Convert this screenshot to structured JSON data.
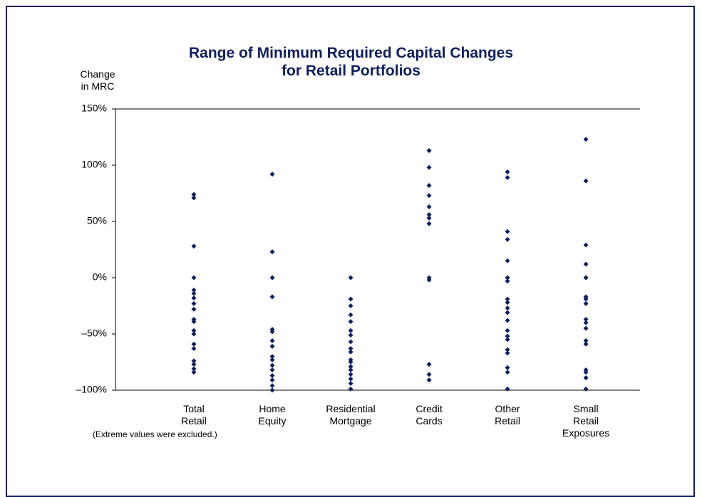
{
  "chart_data": {
    "type": "strip",
    "title": "Range of Minimum Required Capital Changes\nfor Retail Portfolios",
    "y_label": "Change\nin MRC",
    "note": "(Extreme values were excluded.)",
    "color": "#0f1f5c",
    "categories": [
      "Total\nRetail",
      "Home\nEquity",
      "Residential\nMortgage",
      "Credit\nCards",
      "Other\nRetail",
      "Small\nRetail\nExposures"
    ],
    "values": [
      [
        74,
        71,
        28,
        0,
        -11,
        -14,
        -18,
        -23,
        -28,
        -37,
        -39,
        -47,
        -50,
        -59,
        -63,
        -74,
        -77,
        -81,
        -84
      ],
      [
        92,
        23,
        0,
        -17,
        -46,
        -48,
        -56,
        -61,
        -70,
        -73,
        -78,
        -82,
        -87,
        -91,
        -96,
        -100
      ],
      [
        0,
        -19,
        -25,
        -33,
        -39,
        -47,
        -51,
        -57,
        -63,
        -66,
        -73,
        -75,
        -79,
        -82,
        -86,
        -90,
        -94,
        -99
      ],
      [
        113,
        98,
        82,
        73,
        63,
        56,
        53,
        48,
        0,
        -2,
        -77,
        -86,
        -91
      ],
      [
        94,
        89,
        41,
        34,
        15,
        0,
        -3,
        -19,
        -22,
        -27,
        -31,
        -38,
        -47,
        -52,
        -55,
        -64,
        -67,
        -80,
        -84,
        -99
      ],
      [
        123,
        86,
        29,
        12,
        0,
        0,
        -17,
        -19,
        -23,
        -37,
        -40,
        -45,
        -56,
        -59,
        -82,
        -84,
        -89,
        -99
      ]
    ],
    "ylim": [
      -100,
      150
    ],
    "yticks": [
      {
        "value": -100,
        "label": "–100%"
      },
      {
        "value": -50,
        "label": "–50%"
      },
      {
        "value": 0,
        "label": "0%"
      },
      {
        "value": 50,
        "label": "50%"
      },
      {
        "value": 100,
        "label": "100%"
      },
      {
        "value": 150,
        "label": "150%"
      }
    ]
  }
}
